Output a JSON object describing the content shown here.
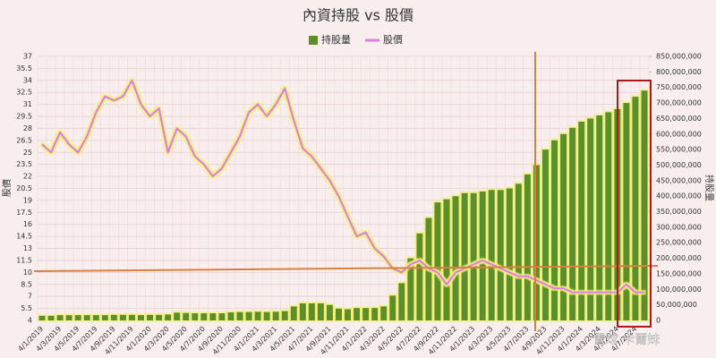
{
  "chart_data": {
    "type": "combo",
    "title": "內資持股 vs 股價",
    "ylabel": "股價",
    "y2label": "持股量",
    "watermark": "雪球 卡爾妹",
    "categories": [
      "4/1/2019",
      null,
      "4/3/2019",
      null,
      "4/5/2019",
      null,
      "4/7/2019",
      null,
      "4/9/2019",
      null,
      "4/11/2019",
      null,
      "4/1/2020",
      null,
      "4/3/2020",
      null,
      "4/5/2020",
      null,
      "4/7/2020",
      null,
      "4/9/2020",
      null,
      "4/11/2020",
      null,
      "4/1/2021",
      null,
      "4/3/2021",
      null,
      "4/5/2021",
      null,
      "4/7/2021",
      null,
      "4/9/2021",
      null,
      "4/11/2021",
      null,
      "4/1/2022",
      null,
      "4/3/2022",
      null,
      "4/5/2022",
      null,
      "4/7/2022",
      null,
      "4/9/2022",
      null,
      "4/11/2022",
      null,
      "4/1/2023",
      null,
      "4/3/2023",
      null,
      "4/5/2023",
      null,
      "4/7/2023",
      null,
      "4/9/2023",
      null,
      "4/11/2023",
      null,
      "4/1/2024",
      null,
      "4/3/2024",
      null,
      "4/5/2024",
      null,
      "4/7/2024",
      null
    ],
    "series": [
      {
        "name": "持股量",
        "type": "bar",
        "axis": "y2",
        "color": "#5b8f29",
        "values": [
          15000000,
          15000000,
          17000000,
          17000000,
          17000000,
          17000000,
          17000000,
          17000000,
          18000000,
          18000000,
          18000000,
          17000000,
          18000000,
          18000000,
          19000000,
          25000000,
          24000000,
          23000000,
          23000000,
          23000000,
          23000000,
          26000000,
          27000000,
          27000000,
          28000000,
          27000000,
          28000000,
          30000000,
          45000000,
          55000000,
          55000000,
          55000000,
          50000000,
          38000000,
          36000000,
          40000000,
          40000000,
          40000000,
          45000000,
          80000000,
          120000000,
          200000000,
          280000000,
          330000000,
          380000000,
          390000000,
          400000000,
          410000000,
          410000000,
          415000000,
          420000000,
          420000000,
          425000000,
          440000000,
          470000000,
          500000000,
          550000000,
          580000000,
          600000000,
          620000000,
          640000000,
          650000000,
          660000000,
          670000000,
          680000000,
          700000000,
          720000000,
          740000000
        ]
      },
      {
        "name": "股價",
        "type": "line",
        "color": "#e07ee0",
        "values": [
          26,
          25,
          27.5,
          26,
          25,
          27,
          30,
          32,
          31.5,
          32,
          34,
          31,
          29.5,
          30.5,
          25,
          28,
          27,
          24.5,
          23.5,
          22,
          23,
          25,
          27,
          30,
          31,
          29.5,
          31,
          33,
          29,
          25.5,
          24.5,
          23,
          21.5,
          19.5,
          17,
          14.5,
          15,
          13,
          12,
          10.5,
          10,
          11,
          11.5,
          10.5,
          10,
          8.5,
          10,
          10.5,
          11,
          11.5,
          11,
          10.5,
          10,
          9.5,
          9.5,
          9,
          8.5,
          8,
          8,
          7.5,
          7.5,
          7.5,
          7.5,
          7.5,
          7.5,
          8.5,
          7.5,
          7.5
        ]
      }
    ],
    "ylim": [
      4,
      37
    ],
    "yticks": [
      4,
      5.5,
      7,
      8.5,
      10,
      11.5,
      13,
      14.5,
      16,
      17.5,
      19,
      20.5,
      22,
      23.5,
      25,
      26.5,
      28,
      29.5,
      31,
      32.5,
      34,
      35.5,
      37
    ],
    "y2lim": [
      0,
      850000000
    ],
    "y2ticks": [
      0,
      {
        "value": 50000000,
        "label": "50,000,000"
      },
      {
        "value": 100000000,
        "label": "100,000,000"
      },
      {
        "value": 150000000,
        "label": "150,000,000"
      },
      {
        "value": 200000000,
        "label": "200,000,000"
      },
      {
        "value": 250000000,
        "label": "250,000,000"
      },
      {
        "value": 300000000,
        "label": "300,000,000"
      },
      {
        "value": 350000000,
        "label": "350,000,000"
      },
      {
        "value": 400000000,
        "label": "400,000,000"
      },
      {
        "value": 450000000,
        "label": "450,000,000"
      },
      {
        "value": 500000000,
        "label": "500,000,000"
      },
      {
        "value": 550000000,
        "label": "550,000,000"
      },
      {
        "value": 600000000,
        "label": "600,000,000"
      },
      {
        "value": 650000000,
        "label": "650,000,000"
      },
      {
        "value": 700000000,
        "label": "700,000,000"
      },
      {
        "value": 750000000,
        "label": "750,000,000"
      },
      {
        "value": 800000000,
        "label": "800,000,000"
      },
      {
        "value": 850000000,
        "label": "850,000,000"
      }
    ],
    "grid": true
  }
}
